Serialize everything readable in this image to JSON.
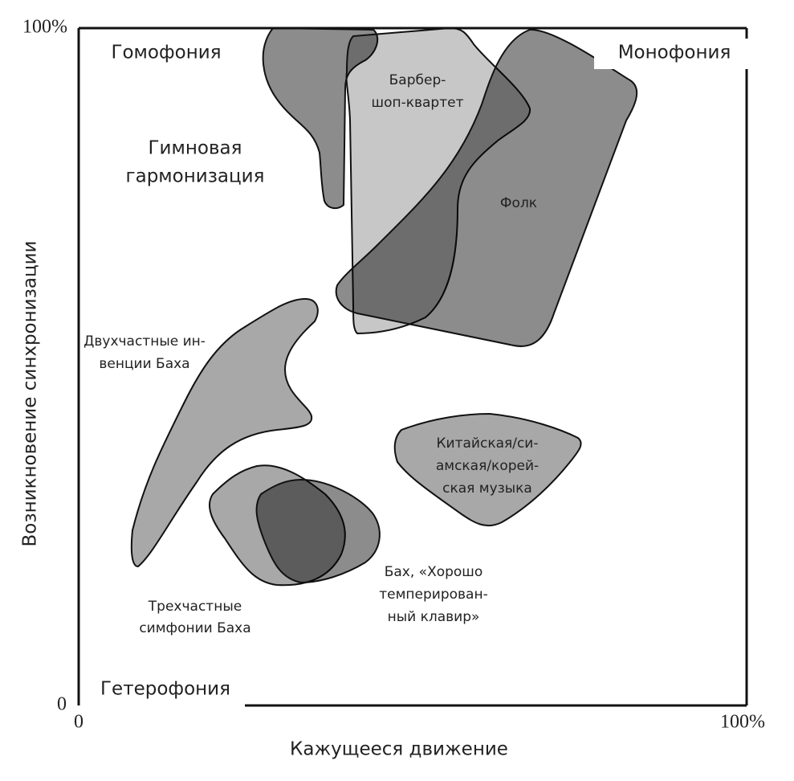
{
  "axes": {
    "x_label": "Кажущееся движение",
    "y_label": "Возникновение синхронизации",
    "y_top_tick": "100%",
    "y_bottom_tick": "0",
    "x_left_tick": "0",
    "x_right_tick": "100%"
  },
  "corners": {
    "top_left": "Гомофония",
    "top_right": "Монофония",
    "bottom_left": "Гетерофония"
  },
  "regions": [
    {
      "label": [
        "Гимновая",
        "гармонизация"
      ]
    },
    {
      "label": [
        "Барбер-",
        "шоп-квартет"
      ]
    },
    {
      "label": [
        "Фолк"
      ]
    },
    {
      "label": [
        "Двухчастные ин-",
        "венции Баха"
      ]
    },
    {
      "label": [
        "Китайская/си-",
        "амская/корей-",
        "ская музыка"
      ]
    },
    {
      "label": [
        "Трехчастные",
        "симфонии Баха"
      ]
    },
    {
      "label": [
        "Бах, «Хорошо",
        "темперирован-",
        "ный клавир»"
      ]
    }
  ]
}
